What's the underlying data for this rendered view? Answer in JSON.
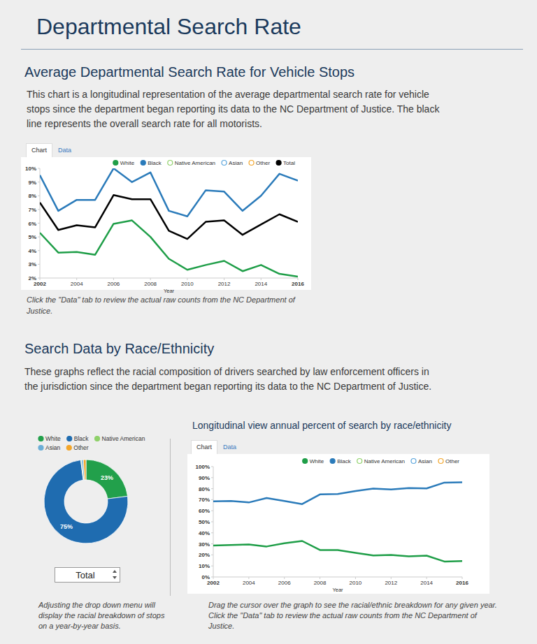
{
  "page": {
    "title": "Departmental Search Rate",
    "sections": [
      {
        "heading": "Average Departmental Search Rate for Vehicle Stops",
        "description": "This chart is a longitudinal representation of the average departmental search rate for vehicle stops since the department began reporting its data to the NC Department of Justice. The black line represents the overall search rate for all motorists.",
        "tabs": [
          "Chart",
          "Data"
        ],
        "caption": "Click the \"Data\" tab to review the actual raw counts from the NC Department of Justice."
      },
      {
        "heading": "Search Data by Race/Ethnicity",
        "description": "These graphs reflect the racial composition of drivers searched by law enforcement officers in the jurisdiction since the department began reporting its data to the NC Department of Justice.",
        "dropdown": "Total",
        "pie_caption": "Adjusting the drop down menu will display the racial breakdown of stops on a year-by-year basis.",
        "tabs": [
          "Chart",
          "Data"
        ],
        "line_caption": "Drag the cursor over the graph to see the racial/ethnic breakdown for any given year. Click the \"Data\" tab to review the actual raw counts from the NC Department of Justice."
      }
    ]
  },
  "chart_data": [
    {
      "type": "line",
      "x_label": "Year",
      "x": [
        2002,
        2003,
        2004,
        2005,
        2006,
        2007,
        2008,
        2009,
        2010,
        2011,
        2012,
        2013,
        2014,
        2015,
        2016
      ],
      "xlim": [
        2002,
        2016
      ],
      "xticks": [
        2002,
        2004,
        2006,
        2008,
        2010,
        2012,
        2014,
        2016
      ],
      "ylim": [
        2,
        10
      ],
      "yticks": [
        {
          "value": 2,
          "label": "2%"
        },
        {
          "value": 3,
          "label": "3%"
        },
        {
          "value": 4,
          "label": "4%"
        },
        {
          "value": 5,
          "label": "5%"
        },
        {
          "value": 6,
          "label": "6%"
        },
        {
          "value": 7,
          "label": "7%"
        },
        {
          "value": 8,
          "label": "8%"
        },
        {
          "value": 9,
          "label": "9%"
        },
        {
          "value": 10,
          "label": "10%"
        }
      ],
      "grid": false,
      "legend": "top-right",
      "series": [
        {
          "name": "White",
          "color": "#1f9e48",
          "values": [
            5.3,
            3.85,
            3.9,
            3.7,
            5.95,
            6.2,
            5.0,
            3.4,
            2.6,
            2.95,
            3.25,
            2.5,
            2.95,
            2.3,
            2.1
          ]
        },
        {
          "name": "Black",
          "color": "#2b7bba",
          "values": [
            9.5,
            6.9,
            7.7,
            7.7,
            10.0,
            9.0,
            9.7,
            6.9,
            6.5,
            8.4,
            8.3,
            6.9,
            8.0,
            9.6,
            9.1
          ]
        },
        {
          "name": "Native American",
          "color": "#8fd16a",
          "values": [
            null,
            null,
            null,
            null,
            null,
            null,
            null,
            null,
            null,
            null,
            null,
            null,
            null,
            null,
            null
          ]
        },
        {
          "name": "Asian",
          "color": "#5aa5dc",
          "values": [
            null,
            null,
            null,
            null,
            null,
            null,
            null,
            null,
            null,
            null,
            null,
            null,
            null,
            null,
            null
          ]
        },
        {
          "name": "Other",
          "color": "#f3a62a",
          "values": [
            null,
            null,
            null,
            null,
            null,
            null,
            null,
            null,
            null,
            null,
            null,
            null,
            null,
            null,
            null
          ]
        },
        {
          "name": "Total",
          "color": "#000000",
          "values": [
            7.5,
            5.5,
            5.85,
            5.7,
            8.05,
            7.75,
            7.75,
            5.45,
            4.85,
            6.1,
            6.2,
            5.15,
            5.9,
            6.65,
            6.1
          ]
        }
      ]
    },
    {
      "type": "pie",
      "categories": [
        "White",
        "Black",
        "Native American",
        "Asian",
        "Other"
      ],
      "values": [
        23,
        75,
        0.3,
        0.7,
        1
      ],
      "value_labels": [
        "23%",
        "75%",
        null,
        null,
        null
      ],
      "colors": [
        "#22a04b",
        "#1f6cb0",
        "#8fd16a",
        "#6baed6",
        "#f3a62a"
      ],
      "data_labels": true,
      "legend": "top-left"
    },
    {
      "type": "line",
      "title": "Longitudinal view annual percent of search by race/ethnicity",
      "x_label": "Year",
      "x": [
        2002,
        2003,
        2004,
        2005,
        2006,
        2007,
        2008,
        2009,
        2010,
        2011,
        2012,
        2013,
        2014,
        2015,
        2016
      ],
      "xlim": [
        2002,
        2016
      ],
      "xticks": [
        2002,
        2004,
        2006,
        2008,
        2010,
        2012,
        2014,
        2016
      ],
      "ylim": [
        0,
        100
      ],
      "yticks": [
        {
          "value": 0,
          "label": "0%"
        },
        {
          "value": 10,
          "label": "10%"
        },
        {
          "value": 20,
          "label": "20%"
        },
        {
          "value": 30,
          "label": "30%"
        },
        {
          "value": 40,
          "label": "40%"
        },
        {
          "value": 50,
          "label": "50%"
        },
        {
          "value": 60,
          "label": "60%"
        },
        {
          "value": 70,
          "label": "70%"
        },
        {
          "value": 80,
          "label": "80%"
        },
        {
          "value": 90,
          "label": "90%"
        },
        {
          "value": 100,
          "label": "100%"
        }
      ],
      "grid": false,
      "legend": "top-right",
      "series": [
        {
          "name": "White",
          "color": "#1f9e48",
          "values": [
            28.5,
            29,
            29.5,
            27.6,
            30.6,
            32.6,
            24.4,
            24.3,
            21.8,
            19.4,
            20,
            18.6,
            19.3,
            14,
            14.4
          ]
        },
        {
          "name": "Black",
          "color": "#2b7bba",
          "values": [
            68.5,
            68.8,
            67.5,
            71.5,
            68.8,
            66,
            74.8,
            75.2,
            77.8,
            80,
            79.3,
            80.6,
            80.2,
            85.5,
            85.8
          ]
        },
        {
          "name": "Native American",
          "color": "#8fd16a",
          "values": [
            null,
            null,
            null,
            null,
            null,
            null,
            null,
            null,
            null,
            null,
            null,
            null,
            null,
            null,
            null
          ]
        },
        {
          "name": "Asian",
          "color": "#5aa5dc",
          "values": [
            null,
            null,
            null,
            null,
            null,
            null,
            null,
            null,
            null,
            null,
            null,
            null,
            null,
            null,
            null
          ]
        },
        {
          "name": "Other",
          "color": "#f3a62a",
          "values": [
            null,
            null,
            null,
            null,
            null,
            null,
            null,
            null,
            null,
            null,
            null,
            null,
            null,
            null,
            null
          ]
        }
      ]
    }
  ]
}
